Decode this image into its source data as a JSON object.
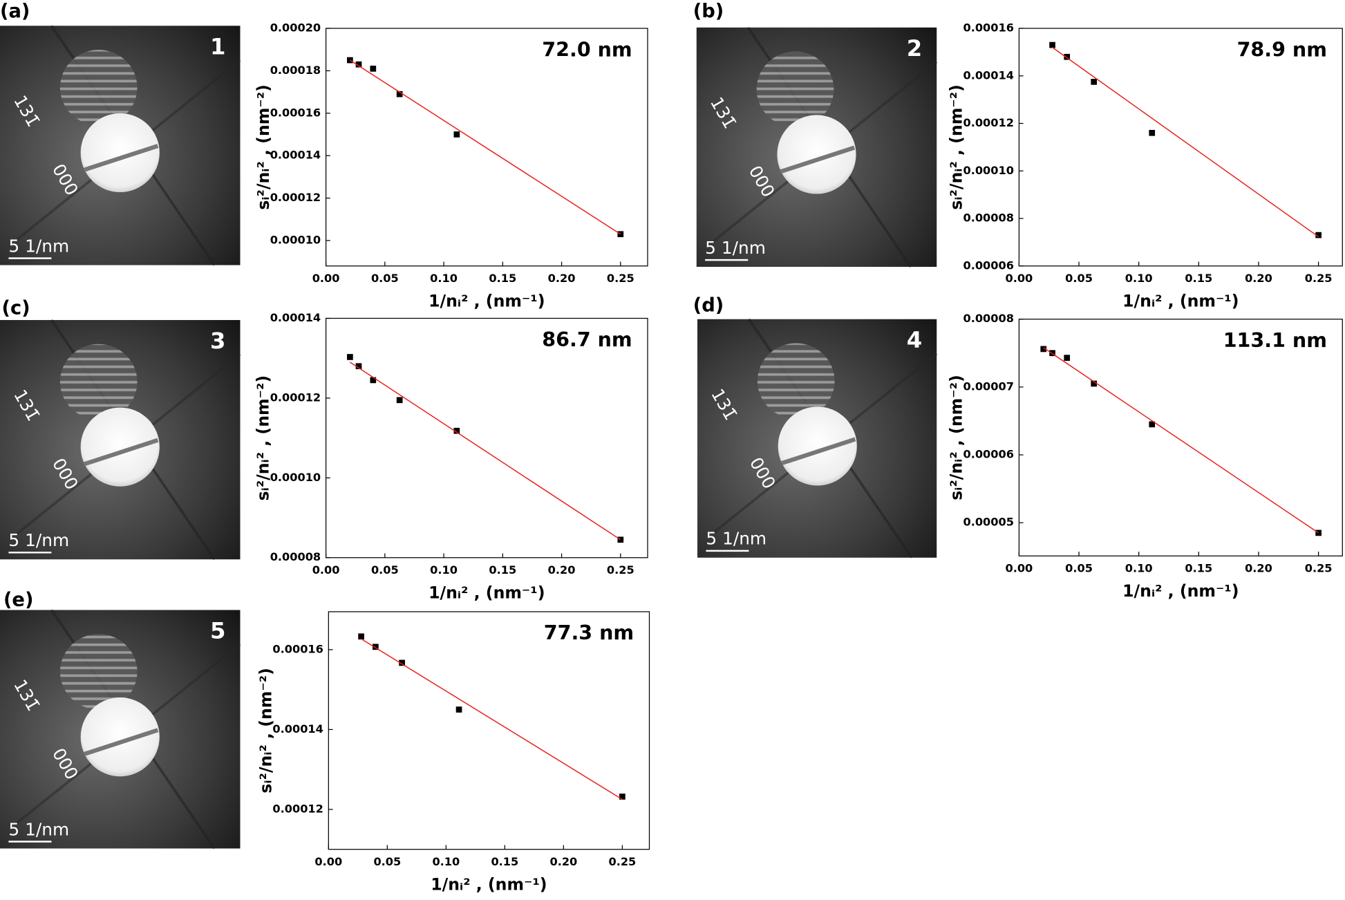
{
  "chart_data": [
    {
      "type": "scatter",
      "panel": "(a)",
      "image_number": "1",
      "image_labels": [
        "131̄",
        "000"
      ],
      "scale_bar": "5 1/nm",
      "annotation": "72.0 nm",
      "xlabel": "1/nᵢ² , (nm⁻¹)",
      "ylabel": "sᵢ²/nᵢ² , (nm⁻²)",
      "xlim": [
        0,
        0.273
      ],
      "ylim": [
        8.8e-05,
        0.0002
      ],
      "xticks": [
        {
          "value": 0,
          "label": "0.00"
        },
        0.05,
        {
          "value": 0.1,
          "label": "0.10"
        },
        0.15,
        {
          "value": 0.2,
          "label": "0.20"
        },
        0.25
      ],
      "yticks": [
        {
          "value": 0.0001,
          "label": "0.00010"
        },
        0.00012,
        0.00014,
        0.00016,
        0.00018,
        {
          "value": 0.0002,
          "label": "0.00020"
        }
      ],
      "series": [
        {
          "mode": "markers",
          "color": "#000000",
          "x": [
            0.0204,
            0.0278,
            0.04,
            0.0625,
            0.111,
            0.25
          ],
          "values": [
            0.000185,
            0.000183,
            0.000181,
            0.000169,
            0.00015,
            0.000103
          ]
        },
        {
          "mode": "line",
          "color": "#e8201c",
          "x": [
            0.0204,
            0.25
          ],
          "values": [
            0.000185,
            0.000103
          ]
        }
      ]
    },
    {
      "type": "scatter",
      "panel": "(b)",
      "image_number": "2",
      "image_labels": [
        "131̄",
        "000"
      ],
      "scale_bar": "5 1/nm",
      "annotation": "78.9 nm",
      "xlabel": "1/nᵢ² , (nm⁻¹)",
      "ylabel": "sᵢ²/nᵢ² , (nm⁻²)",
      "xlim": [
        0,
        0.27
      ],
      "ylim": [
        6e-05,
        0.00016
      ],
      "xticks": [
        {
          "value": 0,
          "label": "0.00"
        },
        0.05,
        {
          "value": 0.1,
          "label": "0.10"
        },
        0.15,
        {
          "value": 0.2,
          "label": "0.20"
        },
        0.25
      ],
      "yticks": [
        6e-05,
        8e-05,
        {
          "value": 0.0001,
          "label": "0.00010"
        },
        0.00012,
        0.00014,
        0.00016
      ],
      "series": [
        {
          "mode": "markers",
          "color": "#000000",
          "x": [
            0.0278,
            0.04,
            0.0625,
            0.111,
            0.25
          ],
          "values": [
            0.000153,
            0.000148,
            0.0001375,
            0.000116,
            7.3e-05
          ]
        },
        {
          "mode": "line",
          "color": "#e8201c",
          "x": [
            0.0278,
            0.25
          ],
          "values": [
            0.000152,
            7.23e-05
          ]
        }
      ]
    },
    {
      "type": "scatter",
      "panel": "(c)",
      "image_number": "3",
      "image_labels": [
        "131̄",
        "000"
      ],
      "scale_bar": "5 1/nm",
      "annotation": "86.7 nm",
      "xlabel": "1/nᵢ² , (nm⁻¹)",
      "ylabel": "sᵢ²/nᵢ² , (nm⁻²)",
      "xlim": [
        0,
        0.273
      ],
      "ylim": [
        8e-05,
        0.00014
      ],
      "xticks": [
        {
          "value": 0,
          "label": "0.00"
        },
        0.05,
        {
          "value": 0.1,
          "label": "0.10"
        },
        0.15,
        {
          "value": 0.2,
          "label": "0.20"
        },
        0.25
      ],
      "yticks": [
        8e-05,
        {
          "value": 0.0001,
          "label": "0.00010"
        },
        0.00012,
        0.00014
      ],
      "series": [
        {
          "mode": "markers",
          "color": "#000000",
          "x": [
            0.0204,
            0.0278,
            0.04,
            0.0625,
            0.111,
            0.25
          ],
          "values": [
            0.0001303,
            0.000128,
            0.0001245,
            0.0001195,
            0.0001118,
            8.45e-05
          ]
        },
        {
          "mode": "line",
          "color": "#e8201c",
          "x": [
            0.0204,
            0.25
          ],
          "values": [
            0.000129,
            8.45e-05
          ]
        }
      ]
    },
    {
      "type": "scatter",
      "panel": "(d)",
      "image_number": "4",
      "image_labels": [
        "131̄",
        "000"
      ],
      "scale_bar": "5 1/nm",
      "annotation": "113.1 nm",
      "xlabel": "1/nᵢ² , (nm⁻¹)",
      "ylabel": "sᵢ²/nᵢ² , (nm⁻²)",
      "xlim": [
        0,
        0.27
      ],
      "ylim": [
        4.51e-05,
        8e-05
      ],
      "xticks": [
        {
          "value": 0,
          "label": "0.00"
        },
        0.05,
        {
          "value": 0.1,
          "label": "0.10"
        },
        0.15,
        {
          "value": 0.2,
          "label": "0.20"
        },
        0.25
      ],
      "yticks": [
        5e-05,
        6e-05,
        7e-05,
        8e-05
      ],
      "series": [
        {
          "mode": "markers",
          "color": "#000000",
          "x": [
            0.0204,
            0.0278,
            0.04,
            0.0625,
            0.111,
            0.25
          ],
          "values": [
            7.56e-05,
            7.5e-05,
            7.43e-05,
            7.05e-05,
            6.45e-05,
            4.85e-05
          ]
        },
        {
          "mode": "line",
          "color": "#e8201c",
          "x": [
            0.0204,
            0.25
          ],
          "values": [
            7.58e-05,
            4.85e-05
          ]
        }
      ]
    },
    {
      "type": "scatter",
      "panel": "(e)",
      "image_number": "5",
      "image_labels": [
        "131̄",
        "000"
      ],
      "scale_bar": "5 1/nm",
      "annotation": "77.3 nm",
      "xlabel": "1/nᵢ² , (nm⁻¹)",
      "ylabel": "sᵢ²/nᵢ² , (nm⁻²)",
      "xlim": [
        0,
        0.273
      ],
      "ylim": [
        0.00011,
        0.0001695
      ],
      "xticks": [
        {
          "value": 0,
          "label": "0.00"
        },
        0.05,
        {
          "value": 0.1,
          "label": "0.10"
        },
        0.15,
        {
          "value": 0.2,
          "label": "0.20"
        },
        0.25
      ],
      "yticks": [
        0.00012,
        0.00014,
        0.00016
      ],
      "series": [
        {
          "mode": "markers",
          "color": "#000000",
          "x": [
            0.0278,
            0.04,
            0.0625,
            0.111,
            0.25
          ],
          "values": [
            0.0001633,
            0.0001607,
            0.0001567,
            0.000145,
            0.0001232
          ]
        },
        {
          "mode": "line",
          "color": "#e8201c",
          "x": [
            0.0278,
            0.25
          ],
          "values": [
            0.0001627,
            0.0001225
          ]
        }
      ]
    }
  ]
}
